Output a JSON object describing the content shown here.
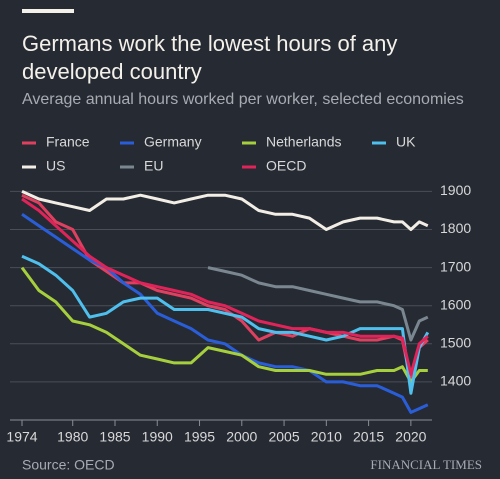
{
  "chart_data": {
    "type": "line",
    "title": "Germans work the lowest hours of any developed country",
    "subtitle": "Average annual hours worked per worker, selected economies",
    "source": "Source: OECD",
    "brand": "FINANCIAL TIMES",
    "x": [
      1974,
      1976,
      1978,
      1980,
      1982,
      1984,
      1986,
      1988,
      1990,
      1992,
      1994,
      1996,
      1998,
      2000,
      2002,
      2004,
      2006,
      2008,
      2010,
      2012,
      2014,
      2016,
      2018,
      2019,
      2020,
      2021,
      2022
    ],
    "xlim": [
      1974,
      2022.5
    ],
    "xticks": [
      1974,
      1980,
      1985,
      1990,
      1995,
      2000,
      2005,
      2010,
      2015,
      2020
    ],
    "ylim": [
      1300,
      1930
    ],
    "yticks": [
      1400,
      1500,
      1600,
      1700,
      1800,
      1900
    ],
    "grid": true,
    "series": [
      {
        "name": "France",
        "color": "#e0405f",
        "values": [
          1890,
          1870,
          1820,
          1800,
          1720,
          1690,
          1660,
          1660,
          1640,
          1630,
          1620,
          1600,
          1590,
          1560,
          1510,
          1530,
          1520,
          1540,
          1530,
          1520,
          1510,
          1510,
          1520,
          1510,
          1400,
          1490,
          1510
        ]
      },
      {
        "name": "Germany",
        "color": "#2a5ed8",
        "values": [
          1840,
          1810,
          1780,
          1750,
          1720,
          1700,
          1660,
          1630,
          1580,
          1560,
          1540,
          1510,
          1500,
          1470,
          1450,
          1440,
          1440,
          1430,
          1400,
          1400,
          1390,
          1390,
          1370,
          1360,
          1320,
          1330,
          1340
        ]
      },
      {
        "name": "Netherlands",
        "color": "#a6cf3d",
        "values": [
          1700,
          1640,
          1610,
          1560,
          1550,
          1530,
          1500,
          1470,
          1460,
          1450,
          1450,
          1490,
          1480,
          1470,
          1440,
          1430,
          1430,
          1430,
          1420,
          1420,
          1420,
          1430,
          1430,
          1440,
          1400,
          1430,
          1430
        ]
      },
      {
        "name": "UK",
        "color": "#4fc0ee",
        "values": [
          1730,
          1710,
          1680,
          1640,
          1570,
          1580,
          1610,
          1620,
          1620,
          1590,
          1590,
          1590,
          1580,
          1570,
          1540,
          1530,
          1530,
          1520,
          1510,
          1520,
          1540,
          1540,
          1540,
          1540,
          1370,
          1490,
          1530
        ]
      },
      {
        "name": "US",
        "color": "#f2eee6",
        "values": [
          1900,
          1880,
          1870,
          1860,
          1850,
          1880,
          1880,
          1890,
          1880,
          1870,
          1880,
          1890,
          1890,
          1880,
          1850,
          1840,
          1840,
          1830,
          1800,
          1820,
          1830,
          1830,
          1820,
          1820,
          1800,
          1820,
          1810
        ]
      },
      {
        "name": "EU",
        "color": "#7a8790",
        "values": [
          null,
          null,
          null,
          null,
          null,
          null,
          null,
          null,
          null,
          null,
          null,
          1700,
          1690,
          1680,
          1660,
          1650,
          1650,
          1640,
          1630,
          1620,
          1610,
          1610,
          1600,
          1590,
          1510,
          1560,
          1570
        ]
      },
      {
        "name": "OECD",
        "color": "#e0245a",
        "values": [
          1880,
          1850,
          1810,
          1770,
          1730,
          1700,
          1680,
          1660,
          1650,
          1640,
          1630,
          1610,
          1600,
          1580,
          1560,
          1550,
          1540,
          1540,
          1530,
          1530,
          1520,
          1520,
          1520,
          1515,
          1420,
          1500,
          1520
        ]
      }
    ]
  }
}
